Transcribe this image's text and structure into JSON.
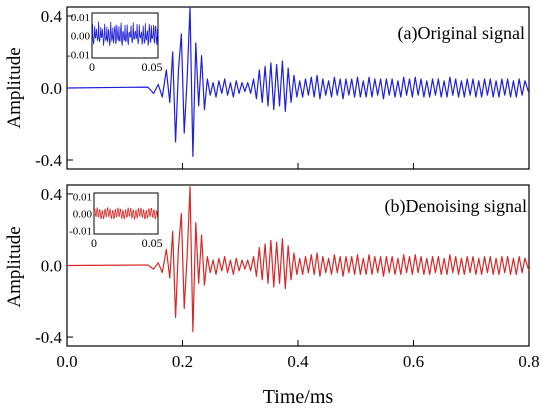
{
  "chart_data": [
    {
      "type": "line",
      "panel_label": "(a)Original signal",
      "color": "#1f1fd6",
      "xlim": [
        0,
        0.8
      ],
      "ylim": [
        -0.45,
        0.45
      ],
      "ylabel": "Amplitude",
      "y_ticks": [
        {
          "value": 0.4,
          "label": "0.4"
        },
        {
          "value": 0.0,
          "label": "0.0"
        },
        {
          "value": -0.4,
          "label": "-0.4"
        }
      ],
      "x_ticks": [
        0,
        0.2,
        0.4,
        0.6,
        0.8
      ],
      "series": [
        {
          "x": [
            0,
            0.14,
            0.15,
            0.158,
            0.165,
            0.172,
            0.178,
            0.183,
            0.188,
            0.193,
            0.198,
            0.203,
            0.208,
            0.213,
            0.218,
            0.223,
            0.228,
            0.233,
            0.238,
            0.243,
            0.248,
            0.253,
            0.258,
            0.263,
            0.268,
            0.273,
            0.278,
            0.283,
            0.288,
            0.293,
            0.298,
            0.303,
            0.308,
            0.313,
            0.318,
            0.323,
            0.328,
            0.333,
            0.338,
            0.343,
            0.348,
            0.353,
            0.358,
            0.363,
            0.368,
            0.373,
            0.378,
            0.383,
            0.388,
            0.393,
            0.398,
            0.403,
            0.408,
            0.413,
            0.418,
            0.423,
            0.428,
            0.433,
            0.438,
            0.443,
            0.448,
            0.453,
            0.458,
            0.463,
            0.468,
            0.473,
            0.478,
            0.483,
            0.488,
            0.493,
            0.498,
            0.503,
            0.508,
            0.513,
            0.518,
            0.523,
            0.528,
            0.533,
            0.538,
            0.543,
            0.548,
            0.553,
            0.558,
            0.563,
            0.568,
            0.573,
            0.578,
            0.583,
            0.588,
            0.593,
            0.598,
            0.603,
            0.608,
            0.613,
            0.618,
            0.623,
            0.628,
            0.633,
            0.638,
            0.643,
            0.648,
            0.653,
            0.658,
            0.663,
            0.668,
            0.673,
            0.678,
            0.683,
            0.688,
            0.693,
            0.698,
            0.703,
            0.708,
            0.713,
            0.718,
            0.723,
            0.728,
            0.733,
            0.738,
            0.743,
            0.748,
            0.753,
            0.758,
            0.763,
            0.768,
            0.773,
            0.778,
            0.783,
            0.788,
            0.793,
            0.8
          ],
          "y": [
            0,
            0.005,
            -0.03,
            0.02,
            -0.05,
            0.1,
            -0.08,
            0.2,
            -0.3,
            0.1,
            0.3,
            -0.25,
            0.05,
            0.45,
            -0.38,
            0.25,
            -0.1,
            0.18,
            -0.12,
            0.05,
            -0.04,
            0.03,
            -0.05,
            0.04,
            -0.03,
            0.05,
            -0.04,
            0.03,
            -0.05,
            0.04,
            -0.03,
            0.03,
            -0.02,
            0.03,
            -0.03,
            0.05,
            -0.06,
            0.1,
            -0.08,
            0.12,
            -0.1,
            0.14,
            -0.12,
            0.13,
            -0.1,
            0.15,
            -0.13,
            0.11,
            -0.08,
            0.07,
            -0.05,
            0.04,
            -0.05,
            0.05,
            -0.04,
            0.06,
            -0.05,
            0.07,
            -0.06,
            0.05,
            -0.04,
            0.04,
            -0.05,
            0.06,
            -0.04,
            0.05,
            -0.06,
            0.05,
            -0.04,
            0.05,
            -0.05,
            0.06,
            -0.05,
            0.04,
            -0.05,
            0.06,
            -0.05,
            0.05,
            -0.04,
            0.05,
            -0.06,
            0.05,
            -0.04,
            0.05,
            -0.05,
            0.04,
            -0.05,
            0.06,
            -0.04,
            0.05,
            -0.05,
            0.06,
            -0.04,
            0.05,
            -0.05,
            0.04,
            -0.05,
            0.05,
            -0.04,
            0.05,
            -0.05,
            0.04,
            -0.05,
            0.06,
            -0.04,
            0.05,
            -0.05,
            0.04,
            -0.05,
            0.05,
            -0.04,
            0.05,
            -0.05,
            0.04,
            -0.05,
            0.05,
            -0.04,
            0.05,
            -0.05,
            0.04,
            -0.05,
            0.05,
            -0.04,
            0.05,
            -0.05,
            0.04,
            -0.05,
            0.05,
            -0.04,
            0.04,
            -0.03
          ]
        }
      ],
      "inset": {
        "xlim": [
          0,
          0.055
        ],
        "ylim": [
          -0.012,
          0.012
        ],
        "x_ticks": [
          {
            "value": 0,
            "label": "0"
          },
          {
            "value": 0.05,
            "label": "0.05"
          }
        ],
        "y_ticks": [
          {
            "value": 0.01,
            "label": "0.01"
          },
          {
            "value": 0.0,
            "label": "0.00"
          },
          {
            "value": -0.01,
            "label": "-0.01"
          }
        ],
        "pattern": "noisy"
      }
    },
    {
      "type": "line",
      "panel_label": "(b)Denoising signal",
      "color": "#d62828",
      "xlim": [
        0,
        0.8
      ],
      "ylim": [
        -0.45,
        0.45
      ],
      "ylabel": "Amplitude",
      "xlabel": "Time/ms",
      "y_ticks": [
        {
          "value": 0.4,
          "label": "0.4"
        },
        {
          "value": 0.0,
          "label": "0.0"
        },
        {
          "value": -0.4,
          "label": "-0.4"
        }
      ],
      "x_ticks": [
        {
          "value": 0.0,
          "label": "0.0"
        },
        {
          "value": 0.2,
          "label": "0.2"
        },
        {
          "value": 0.4,
          "label": "0.4"
        },
        {
          "value": 0.6,
          "label": "0.6"
        },
        {
          "value": 0.8,
          "label": "0.8"
        }
      ],
      "series": [
        {
          "x": [
            0,
            0.14,
            0.15,
            0.158,
            0.165,
            0.172,
            0.178,
            0.183,
            0.188,
            0.193,
            0.198,
            0.203,
            0.208,
            0.213,
            0.218,
            0.223,
            0.228,
            0.233,
            0.238,
            0.243,
            0.248,
            0.253,
            0.258,
            0.263,
            0.268,
            0.273,
            0.278,
            0.283,
            0.288,
            0.293,
            0.298,
            0.303,
            0.308,
            0.313,
            0.318,
            0.323,
            0.328,
            0.333,
            0.338,
            0.343,
            0.348,
            0.353,
            0.358,
            0.363,
            0.368,
            0.373,
            0.378,
            0.383,
            0.388,
            0.393,
            0.398,
            0.403,
            0.408,
            0.413,
            0.418,
            0.423,
            0.428,
            0.433,
            0.438,
            0.443,
            0.448,
            0.453,
            0.458,
            0.463,
            0.468,
            0.473,
            0.478,
            0.483,
            0.488,
            0.493,
            0.498,
            0.503,
            0.508,
            0.513,
            0.518,
            0.523,
            0.528,
            0.533,
            0.538,
            0.543,
            0.548,
            0.553,
            0.558,
            0.563,
            0.568,
            0.573,
            0.578,
            0.583,
            0.588,
            0.593,
            0.598,
            0.603,
            0.608,
            0.613,
            0.618,
            0.623,
            0.628,
            0.633,
            0.638,
            0.643,
            0.648,
            0.653,
            0.658,
            0.663,
            0.668,
            0.673,
            0.678,
            0.683,
            0.688,
            0.693,
            0.698,
            0.703,
            0.708,
            0.713,
            0.718,
            0.723,
            0.728,
            0.733,
            0.738,
            0.743,
            0.748,
            0.753,
            0.758,
            0.763,
            0.768,
            0.773,
            0.778,
            0.783,
            0.788,
            0.793,
            0.8
          ],
          "y": [
            0,
            0.003,
            -0.02,
            0.015,
            -0.04,
            0.09,
            -0.07,
            0.19,
            -0.29,
            0.1,
            0.29,
            -0.24,
            0.05,
            0.44,
            -0.37,
            0.24,
            -0.1,
            0.17,
            -0.11,
            0.05,
            -0.04,
            0.03,
            -0.05,
            0.04,
            -0.03,
            0.05,
            -0.04,
            0.03,
            -0.05,
            0.04,
            -0.03,
            0.03,
            -0.02,
            0.03,
            -0.03,
            0.05,
            -0.06,
            0.1,
            -0.08,
            0.12,
            -0.1,
            0.14,
            -0.12,
            0.13,
            -0.1,
            0.15,
            -0.13,
            0.11,
            -0.08,
            0.07,
            -0.05,
            0.04,
            -0.05,
            0.05,
            -0.04,
            0.06,
            -0.05,
            0.07,
            -0.06,
            0.05,
            -0.04,
            0.04,
            -0.05,
            0.06,
            -0.04,
            0.05,
            -0.06,
            0.05,
            -0.04,
            0.05,
            -0.05,
            0.06,
            -0.05,
            0.04,
            -0.05,
            0.06,
            -0.05,
            0.05,
            -0.04,
            0.05,
            -0.06,
            0.05,
            -0.04,
            0.05,
            -0.05,
            0.04,
            -0.05,
            0.06,
            -0.04,
            0.05,
            -0.05,
            0.06,
            -0.04,
            0.05,
            -0.05,
            0.04,
            -0.05,
            0.05,
            -0.04,
            0.05,
            -0.05,
            0.04,
            -0.05,
            0.06,
            -0.04,
            0.05,
            -0.05,
            0.04,
            -0.05,
            0.05,
            -0.04,
            0.05,
            -0.05,
            0.04,
            -0.05,
            0.05,
            -0.04,
            0.05,
            -0.05,
            0.04,
            -0.05,
            0.05,
            -0.04,
            0.05,
            -0.05,
            0.04,
            -0.05,
            0.05,
            -0.04,
            0.04,
            -0.03
          ]
        }
      ],
      "inset": {
        "xlim": [
          0,
          0.055
        ],
        "ylim": [
          -0.012,
          0.012
        ],
        "x_ticks": [
          {
            "value": 0,
            "label": "0"
          },
          {
            "value": 0.05,
            "label": "0.05"
          }
        ],
        "y_ticks": [
          {
            "value": 0.01,
            "label": "0.01"
          },
          {
            "value": 0.0,
            "label": "0.00"
          },
          {
            "value": -0.01,
            "label": "-0.01"
          }
        ],
        "pattern": "smooth"
      }
    }
  ]
}
